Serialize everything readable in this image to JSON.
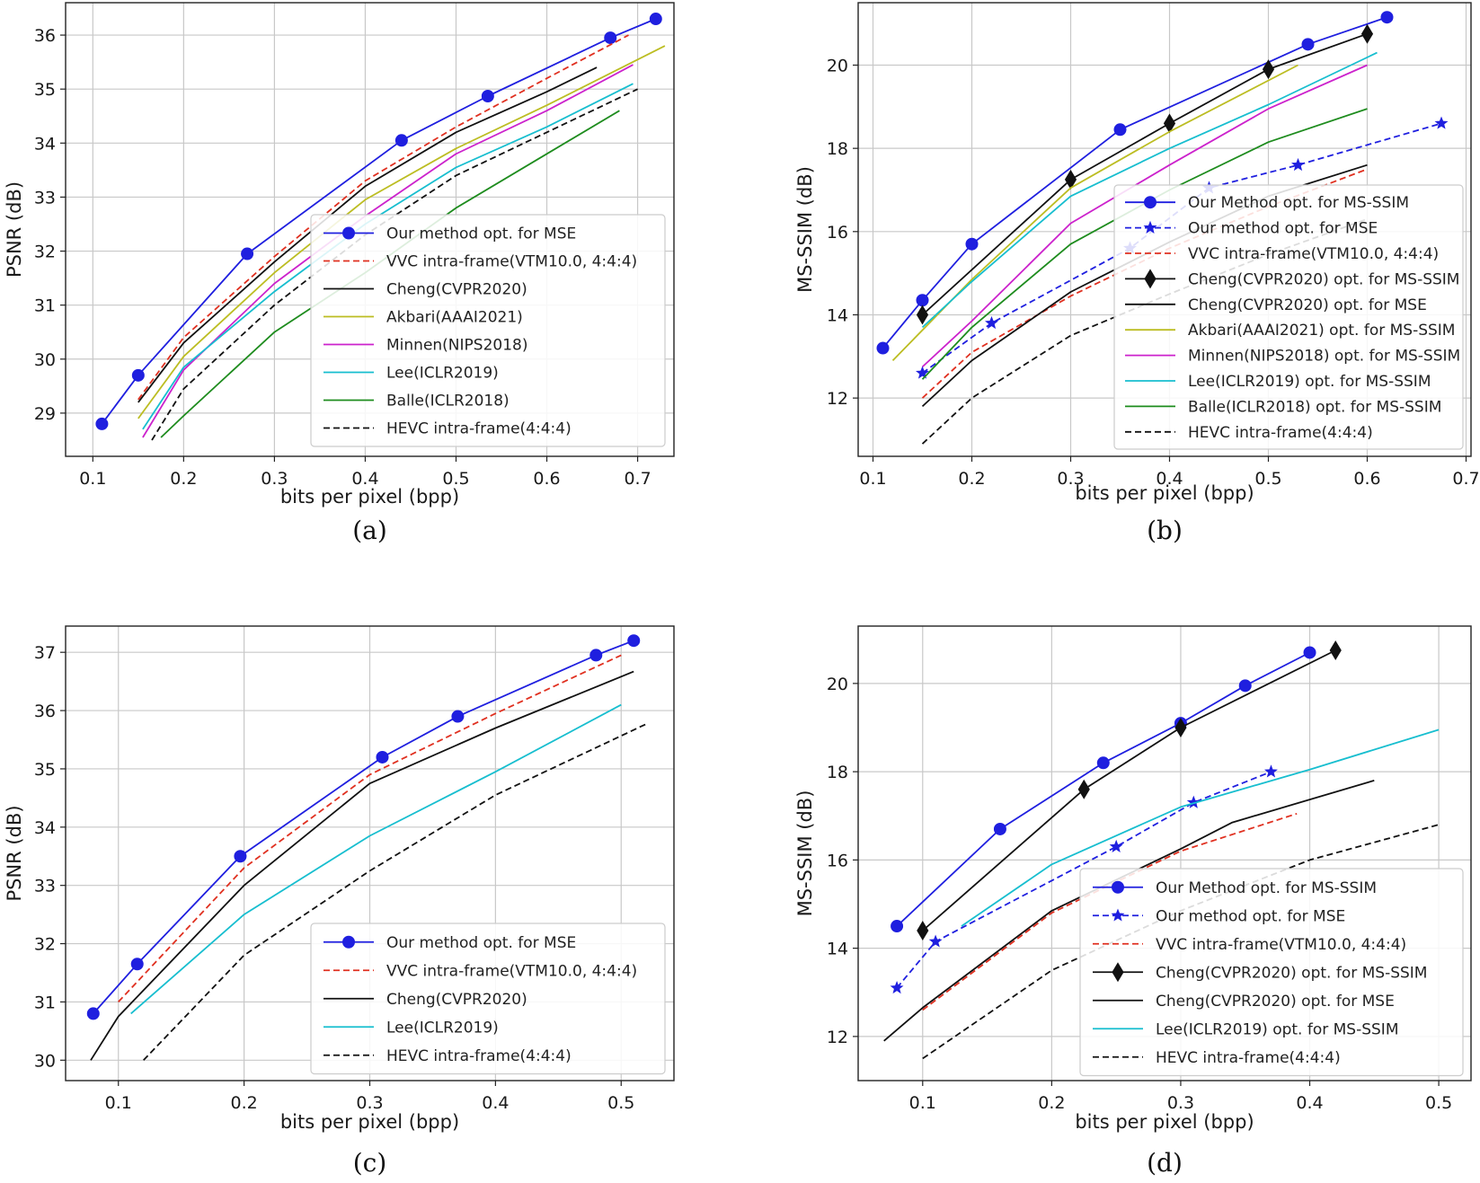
{
  "figure": {
    "background": "#ffffff"
  },
  "chart_data": [
    {
      "caption": "(a)",
      "type": "line",
      "xlabel": "bits per pixel (bpp)",
      "ylabel": "PSNR (dB)",
      "xlim": [
        0.07,
        0.74
      ],
      "ylim": [
        28.2,
        36.6
      ],
      "xticks": [
        0.1,
        0.2,
        0.3,
        0.4,
        0.5,
        0.6,
        0.7
      ],
      "yticks": [
        29,
        30,
        31,
        32,
        33,
        34,
        35,
        36
      ],
      "grid": true,
      "legend_position": "lower-right",
      "series": [
        {
          "name": "Our method opt. for MSE",
          "color": "#1f1fdf",
          "dash": "solid",
          "marker": "circle",
          "x": [
            0.11,
            0.15,
            0.27,
            0.44,
            0.535,
            0.67,
            0.72
          ],
          "y": [
            28.8,
            29.7,
            31.95,
            34.05,
            34.87,
            35.95,
            36.3
          ]
        },
        {
          "name": "VVC intra-frame(VTM10.0, 4:4:4)",
          "color": "#e03020",
          "dash": "dashed",
          "marker": "none",
          "x": [
            0.15,
            0.2,
            0.3,
            0.4,
            0.5,
            0.6,
            0.69
          ],
          "y": [
            29.25,
            30.4,
            31.9,
            33.3,
            34.3,
            35.2,
            36.0
          ]
        },
        {
          "name": "Cheng(CVPR2020)",
          "color": "#111111",
          "dash": "solid",
          "marker": "none",
          "x": [
            0.15,
            0.2,
            0.3,
            0.4,
            0.5,
            0.6,
            0.655
          ],
          "y": [
            29.2,
            30.3,
            31.8,
            33.2,
            34.2,
            34.95,
            35.4
          ]
        },
        {
          "name": "Akbari(AAAI2021)",
          "color": "#bcbd22",
          "dash": "solid",
          "marker": "none",
          "x": [
            0.15,
            0.2,
            0.3,
            0.4,
            0.5,
            0.6,
            0.73
          ],
          "y": [
            28.9,
            30.05,
            31.6,
            32.95,
            33.9,
            34.7,
            35.8
          ]
        },
        {
          "name": "Minnen(NIPS2018)",
          "color": "#cc22cc",
          "dash": "solid",
          "marker": "none",
          "x": [
            0.155,
            0.2,
            0.3,
            0.4,
            0.5,
            0.6,
            0.695
          ],
          "y": [
            28.55,
            29.8,
            31.4,
            32.65,
            33.8,
            34.6,
            35.45
          ]
        },
        {
          "name": "Lee(ICLR2019)",
          "color": "#17becf",
          "dash": "solid",
          "marker": "none",
          "x": [
            0.155,
            0.2,
            0.3,
            0.4,
            0.5,
            0.6,
            0.695
          ],
          "y": [
            28.7,
            29.85,
            31.25,
            32.5,
            33.55,
            34.3,
            35.1
          ]
        },
        {
          "name": "Balle(ICLR2018)",
          "color": "#1e8c1e",
          "dash": "solid",
          "marker": "none",
          "x": [
            0.175,
            0.2,
            0.3,
            0.4,
            0.5,
            0.6,
            0.68
          ],
          "y": [
            28.55,
            28.95,
            30.5,
            31.6,
            32.8,
            33.8,
            34.6
          ]
        },
        {
          "name": "HEVC intra-frame(4:4:4)",
          "color": "#111111",
          "dash": "dashed",
          "marker": "none",
          "x": [
            0.165,
            0.2,
            0.3,
            0.4,
            0.5,
            0.6,
            0.7
          ],
          "y": [
            28.5,
            29.45,
            31.0,
            32.3,
            33.4,
            34.2,
            35.0
          ]
        }
      ]
    },
    {
      "caption": "(b)",
      "type": "line",
      "xlabel": "bits per pixel (bpp)",
      "ylabel": "MS-SSIM (dB)",
      "xlim": [
        0.085,
        0.705
      ],
      "ylim": [
        10.6,
        21.5
      ],
      "xticks": [
        0.1,
        0.2,
        0.3,
        0.4,
        0.5,
        0.6,
        0.7
      ],
      "yticks": [
        12,
        14,
        16,
        18,
        20
      ],
      "grid": true,
      "legend_position": "lower-right",
      "series": [
        {
          "name": "Our Method opt. for MS-SSIM",
          "color": "#1f1fdf",
          "dash": "solid",
          "marker": "circle",
          "x": [
            0.11,
            0.15,
            0.2,
            0.35,
            0.54,
            0.62
          ],
          "y": [
            13.2,
            14.35,
            15.7,
            18.45,
            20.5,
            21.15
          ]
        },
        {
          "name": "Our method opt. for MSE",
          "color": "#1f1fdf",
          "dash": "dashed",
          "marker": "star",
          "x": [
            0.15,
            0.22,
            0.36,
            0.44,
            0.53,
            0.675
          ],
          "y": [
            12.6,
            13.8,
            15.6,
            17.05,
            17.6,
            18.6
          ]
        },
        {
          "name": "VVC intra-frame(VTM10.0, 4:4:4)",
          "color": "#e03020",
          "dash": "dashed",
          "marker": "none",
          "x": [
            0.15,
            0.2,
            0.3,
            0.4,
            0.5,
            0.6
          ],
          "y": [
            12.0,
            13.1,
            14.45,
            15.6,
            16.6,
            17.5
          ]
        },
        {
          "name": "Cheng(CVPR2020) opt. for MS-SSIM",
          "color": "#111111",
          "dash": "solid",
          "marker": "diamond",
          "x": [
            0.15,
            0.3,
            0.4,
            0.5,
            0.6
          ],
          "y": [
            14.0,
            17.25,
            18.6,
            19.9,
            20.75
          ]
        },
        {
          "name": "Cheng(CVPR2020) opt. for MSE",
          "color": "#111111",
          "dash": "solid",
          "marker": "none",
          "x": [
            0.15,
            0.2,
            0.3,
            0.4,
            0.5,
            0.6
          ],
          "y": [
            11.8,
            12.9,
            14.55,
            15.75,
            16.85,
            17.6
          ]
        },
        {
          "name": "Akbari(AAAI2021) opt. for MS-SSIM",
          "color": "#bcbd22",
          "dash": "solid",
          "marker": "none",
          "x": [
            0.12,
            0.2,
            0.3,
            0.4,
            0.53
          ],
          "y": [
            12.9,
            14.85,
            17.05,
            18.4,
            20.0
          ]
        },
        {
          "name": "Minnen(NIPS2018) opt. for MS-SSIM",
          "color": "#cc22cc",
          "dash": "solid",
          "marker": "none",
          "x": [
            0.15,
            0.2,
            0.3,
            0.4,
            0.5,
            0.6
          ],
          "y": [
            12.75,
            13.85,
            16.2,
            17.6,
            18.95,
            20.0
          ]
        },
        {
          "name": "Lee(ICLR2019) opt. for MS-SSIM",
          "color": "#17becf",
          "dash": "solid",
          "marker": "none",
          "x": [
            0.15,
            0.2,
            0.3,
            0.4,
            0.5,
            0.61
          ],
          "y": [
            13.7,
            14.8,
            16.85,
            18.0,
            19.05,
            20.3
          ]
        },
        {
          "name": "Balle(ICLR2018) opt. for MS-SSIM",
          "color": "#1e8c1e",
          "dash": "solid",
          "marker": "none",
          "x": [
            0.15,
            0.2,
            0.3,
            0.4,
            0.5,
            0.6
          ],
          "y": [
            12.45,
            13.7,
            15.7,
            17.0,
            18.15,
            18.95
          ]
        },
        {
          "name": "HEVC intra-frame(4:4:4)",
          "color": "#111111",
          "dash": "dashed",
          "marker": "none",
          "x": [
            0.15,
            0.2,
            0.3,
            0.4,
            0.5,
            0.6
          ],
          "y": [
            10.9,
            12.0,
            13.5,
            14.5,
            15.45,
            16.3
          ]
        }
      ]
    },
    {
      "caption": "(c)",
      "type": "line",
      "xlabel": "bits per pixel (bpp)",
      "ylabel": "PSNR (dB)",
      "xlim": [
        0.058,
        0.542
      ],
      "ylim": [
        29.65,
        37.45
      ],
      "xticks": [
        0.1,
        0.2,
        0.3,
        0.4,
        0.5
      ],
      "yticks": [
        30,
        31,
        32,
        33,
        34,
        35,
        36,
        37
      ],
      "grid": true,
      "legend_position": "lower-right",
      "series": [
        {
          "name": "Our method opt. for MSE",
          "color": "#1f1fdf",
          "dash": "solid",
          "marker": "circle",
          "x": [
            0.08,
            0.115,
            0.197,
            0.31,
            0.37,
            0.48,
            0.51
          ],
          "y": [
            30.8,
            31.65,
            33.5,
            35.2,
            35.9,
            36.95,
            37.2
          ]
        },
        {
          "name": "VVC intra-frame(VTM10.0, 4:4:4)",
          "color": "#e03020",
          "dash": "dashed",
          "marker": "none",
          "x": [
            0.1,
            0.2,
            0.3,
            0.4,
            0.5
          ],
          "y": [
            31.0,
            33.3,
            34.9,
            35.95,
            36.95
          ]
        },
        {
          "name": "Cheng(CVPR2020)",
          "color": "#111111",
          "dash": "solid",
          "marker": "none",
          "x": [
            0.078,
            0.1,
            0.2,
            0.3,
            0.4,
            0.51
          ],
          "y": [
            30.0,
            30.75,
            33.0,
            34.75,
            35.7,
            36.67
          ]
        },
        {
          "name": "Lee(ICLR2019)",
          "color": "#17becf",
          "dash": "solid",
          "marker": "none",
          "x": [
            0.11,
            0.2,
            0.3,
            0.4,
            0.5
          ],
          "y": [
            30.8,
            32.5,
            33.85,
            34.95,
            36.1
          ]
        },
        {
          "name": "HEVC intra-frame(4:4:4)",
          "color": "#111111",
          "dash": "dashed",
          "marker": "none",
          "x": [
            0.12,
            0.2,
            0.3,
            0.4,
            0.52
          ],
          "y": [
            30.0,
            31.8,
            33.25,
            34.55,
            35.77
          ]
        }
      ]
    },
    {
      "caption": "(d)",
      "type": "line",
      "xlabel": "bits per pixel (bpp)",
      "ylabel": "MS-SSIM (dB)",
      "xlim": [
        0.05,
        0.525
      ],
      "ylim": [
        11.0,
        21.3
      ],
      "xticks": [
        0.1,
        0.2,
        0.3,
        0.4,
        0.5
      ],
      "yticks": [
        12,
        14,
        16,
        18,
        20
      ],
      "grid": true,
      "legend_position": "lower-right",
      "series": [
        {
          "name": "Our Method opt. for MS-SSIM",
          "color": "#1f1fdf",
          "dash": "solid",
          "marker": "circle",
          "x": [
            0.08,
            0.16,
            0.24,
            0.3,
            0.35,
            0.4
          ],
          "y": [
            14.5,
            16.7,
            18.2,
            19.1,
            19.95,
            20.7
          ]
        },
        {
          "name": "Our method opt. for MSE",
          "color": "#1f1fdf",
          "dash": "dashed",
          "marker": "star",
          "x": [
            0.08,
            0.11,
            0.25,
            0.31,
            0.37
          ],
          "y": [
            13.1,
            14.15,
            16.3,
            17.3,
            18.0
          ]
        },
        {
          "name": "VVC intra-frame(VTM10.0, 4:4:4)",
          "color": "#e03020",
          "dash": "dashed",
          "marker": "none",
          "x": [
            0.1,
            0.2,
            0.3,
            0.39
          ],
          "y": [
            12.6,
            14.8,
            16.2,
            17.05
          ]
        },
        {
          "name": "Cheng(CVPR2020) opt. for MS-SSIM",
          "color": "#111111",
          "dash": "solid",
          "marker": "diamond",
          "x": [
            0.1,
            0.225,
            0.3,
            0.42
          ],
          "y": [
            14.4,
            17.6,
            19.0,
            20.75
          ]
        },
        {
          "name": "Cheng(CVPR2020) opt. for MSE",
          "color": "#111111",
          "dash": "solid",
          "marker": "none",
          "x": [
            0.07,
            0.1,
            0.2,
            0.3,
            0.34,
            0.45
          ],
          "y": [
            11.9,
            12.65,
            14.85,
            16.25,
            16.85,
            17.8
          ]
        },
        {
          "name": "Lee(ICLR2019) opt. for MS-SSIM",
          "color": "#17becf",
          "dash": "solid",
          "marker": "none",
          "x": [
            0.13,
            0.2,
            0.3,
            0.4,
            0.5
          ],
          "y": [
            14.5,
            15.9,
            17.2,
            18.05,
            18.95
          ]
        },
        {
          "name": "HEVC intra-frame(4:4:4)",
          "color": "#111111",
          "dash": "dashed",
          "marker": "none",
          "x": [
            0.1,
            0.2,
            0.3,
            0.4,
            0.5
          ],
          "y": [
            11.5,
            13.5,
            14.85,
            16.0,
            16.8
          ]
        }
      ]
    }
  ]
}
